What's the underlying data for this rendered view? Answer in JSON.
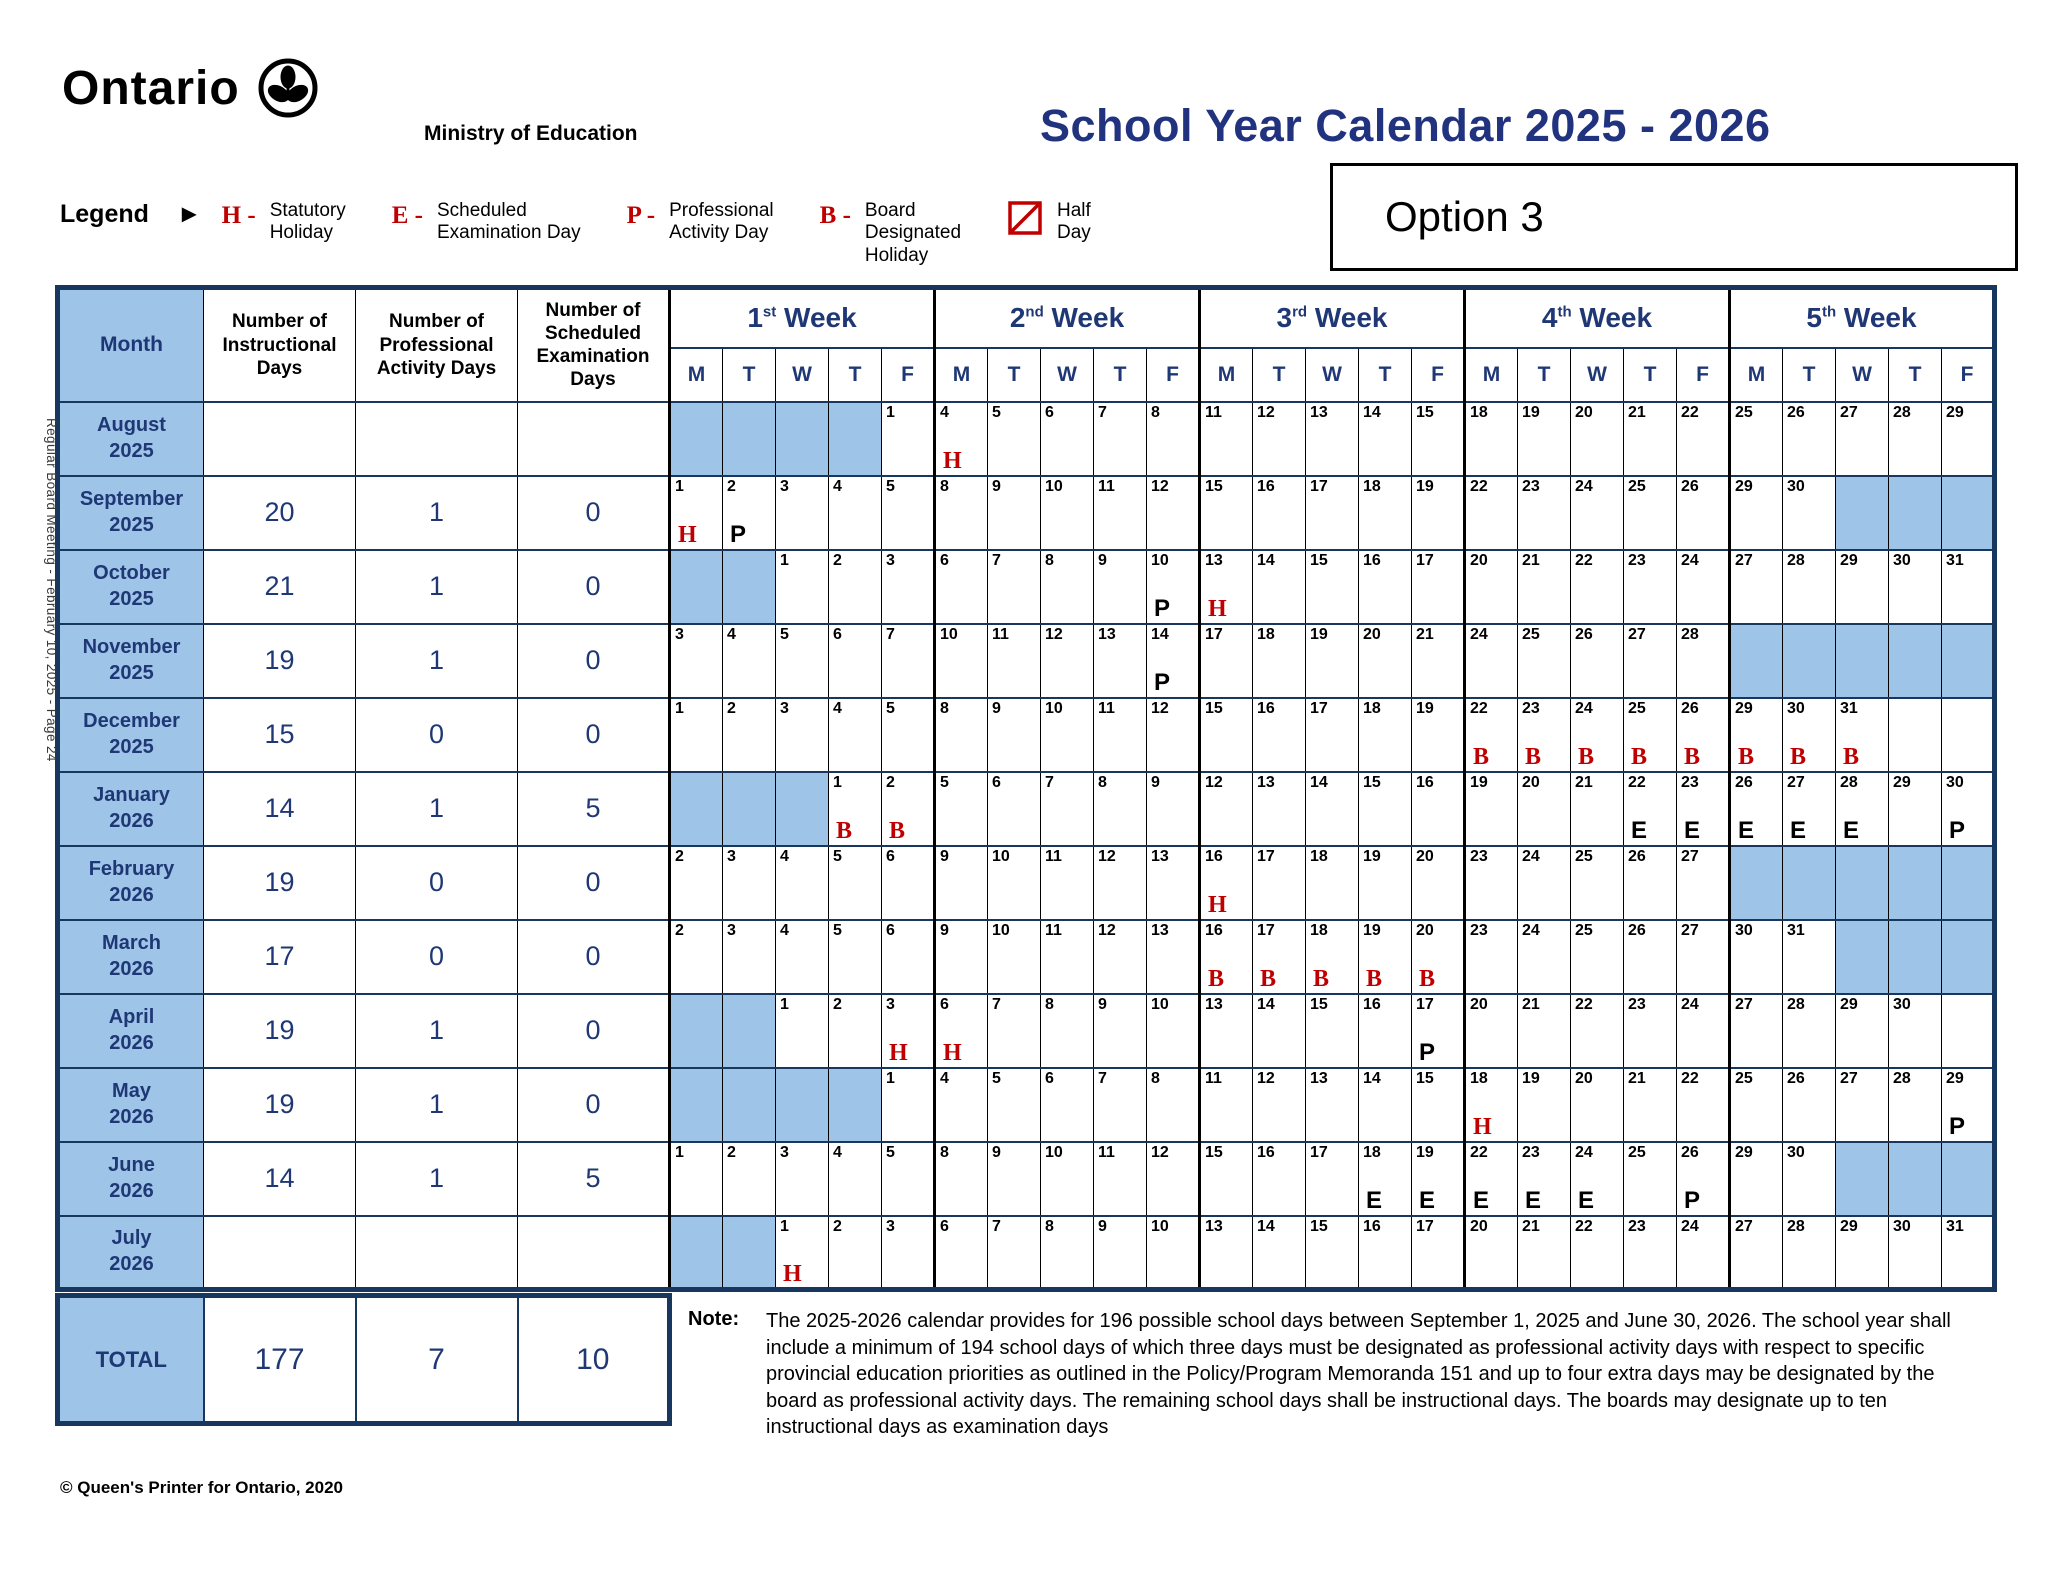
{
  "page": {
    "side_note": "Regular Board Meeting - February 10, 2025 - Page 24",
    "footer": "© Queen's Printer for Ontario, 2020"
  },
  "header": {
    "logo_text": "Ontario",
    "ministry": "Ministry of Education",
    "title": "School Year Calendar 2025 - 2026",
    "option": "Option 3"
  },
  "legend": {
    "label": "Legend",
    "items": [
      {
        "code": "H -",
        "desc": "Statutory\nHoliday"
      },
      {
        "code": "E -",
        "desc": "Scheduled\nExamination Day"
      },
      {
        "code": "P -",
        "desc": "Professional\nActivity Day"
      },
      {
        "code": "B -",
        "desc": "Board\nDesignated\nHoliday"
      },
      {
        "icon": "half-day-icon",
        "desc": "Half\nDay"
      }
    ]
  },
  "table": {
    "headers": {
      "month": "Month",
      "counts": [
        "Number of\nInstructional\nDays",
        "Number of\nProfessional\nActivity Days",
        "Number of\nScheduled\nExamination\nDays"
      ],
      "weeks": [
        {
          "ord": "1",
          "suffix": "st",
          "word": "Week"
        },
        {
          "ord": "2",
          "suffix": "nd",
          "word": "Week"
        },
        {
          "ord": "3",
          "suffix": "rd",
          "word": "Week"
        },
        {
          "ord": "4",
          "suffix": "th",
          "word": "Week"
        },
        {
          "ord": "5",
          "suffix": "th",
          "word": "Week"
        }
      ],
      "days": [
        "M",
        "T",
        "W",
        "T",
        "F"
      ]
    },
    "months": [
      {
        "name": "August",
        "year": "2025",
        "instructional": "",
        "pa": "",
        "exam": "",
        "weeks": [
          [
            "~",
            "~",
            "~",
            "~",
            "1"
          ],
          [
            "4|H",
            "5",
            "6",
            "7",
            "8"
          ],
          [
            "11",
            "12",
            "13",
            "14",
            "15"
          ],
          [
            "18",
            "19",
            "20",
            "21",
            "22"
          ],
          [
            "25",
            "26",
            "27",
            "28",
            "29"
          ]
        ]
      },
      {
        "name": "September",
        "year": "2025",
        "instructional": "20",
        "pa": "1",
        "exam": "0",
        "weeks": [
          [
            "1|H",
            "2|P",
            "3",
            "4",
            "5"
          ],
          [
            "8",
            "9",
            "10",
            "11",
            "12"
          ],
          [
            "15",
            "16",
            "17",
            "18",
            "19"
          ],
          [
            "22",
            "23",
            "24",
            "25",
            "26"
          ],
          [
            "29",
            "30",
            "~",
            "~",
            "~"
          ]
        ]
      },
      {
        "name": "October",
        "year": "2025",
        "instructional": "21",
        "pa": "1",
        "exam": "0",
        "weeks": [
          [
            "~",
            "~",
            "1",
            "2",
            "3"
          ],
          [
            "6",
            "7",
            "8",
            "9",
            "10|P"
          ],
          [
            "13|H",
            "14",
            "15",
            "16",
            "17"
          ],
          [
            "20",
            "21",
            "22",
            "23",
            "24"
          ],
          [
            "27",
            "28",
            "29",
            "30",
            "31"
          ]
        ]
      },
      {
        "name": "November",
        "year": "2025",
        "instructional": "19",
        "pa": "1",
        "exam": "0",
        "weeks": [
          [
            "3",
            "4",
            "5",
            "6",
            "7"
          ],
          [
            "10",
            "11",
            "12",
            "13",
            "14|P"
          ],
          [
            "17",
            "18",
            "19",
            "20",
            "21"
          ],
          [
            "24",
            "25",
            "26",
            "27",
            "28"
          ],
          [
            "~",
            "~",
            "~",
            "~",
            "~"
          ]
        ]
      },
      {
        "name": "December",
        "year": "2025",
        "instructional": "15",
        "pa": "0",
        "exam": "0",
        "weeks": [
          [
            "1",
            "2",
            "3",
            "4",
            "5"
          ],
          [
            "8",
            "9",
            "10",
            "11",
            "12"
          ],
          [
            "15",
            "16",
            "17",
            "18",
            "19"
          ],
          [
            "22|B",
            "23|B",
            "24|B",
            "25|B",
            "26|B"
          ],
          [
            "29|B",
            "30|B",
            "31|B",
            "",
            ""
          ]
        ]
      },
      {
        "name": "January",
        "year": "2026",
        "instructional": "14",
        "pa": "1",
        "exam": "5",
        "weeks": [
          [
            "~",
            "~",
            "~",
            "1|B",
            "2|B"
          ],
          [
            "5",
            "6",
            "7",
            "8",
            "9"
          ],
          [
            "12",
            "13",
            "14",
            "15",
            "16"
          ],
          [
            "19",
            "20",
            "21",
            "22|E",
            "23|E"
          ],
          [
            "26|E",
            "27|E",
            "28|E",
            "29",
            "30|P"
          ]
        ]
      },
      {
        "name": "February",
        "year": "2026",
        "instructional": "19",
        "pa": "0",
        "exam": "0",
        "weeks": [
          [
            "2",
            "3",
            "4",
            "5",
            "6"
          ],
          [
            "9",
            "10",
            "11",
            "12",
            "13"
          ],
          [
            "16|H",
            "17",
            "18",
            "19",
            "20"
          ],
          [
            "23",
            "24",
            "25",
            "26",
            "27"
          ],
          [
            "~",
            "~",
            "~",
            "~",
            "~"
          ]
        ]
      },
      {
        "name": "March",
        "year": "2026",
        "instructional": "17",
        "pa": "0",
        "exam": "0",
        "weeks": [
          [
            "2",
            "3",
            "4",
            "5",
            "6"
          ],
          [
            "9",
            "10",
            "11",
            "12",
            "13"
          ],
          [
            "16|B",
            "17|B",
            "18|B",
            "19|B",
            "20|B"
          ],
          [
            "23",
            "24",
            "25",
            "26",
            "27"
          ],
          [
            "30",
            "31",
            "~",
            "~",
            "~"
          ]
        ]
      },
      {
        "name": "April",
        "year": "2026",
        "instructional": "19",
        "pa": "1",
        "exam": "0",
        "weeks": [
          [
            "~",
            "~",
            "1",
            "2",
            "3|H"
          ],
          [
            "6|H",
            "7",
            "8",
            "9",
            "10"
          ],
          [
            "13",
            "14",
            "15",
            "16",
            "17|P"
          ],
          [
            "20",
            "21",
            "22",
            "23",
            "24"
          ],
          [
            "27",
            "28",
            "29",
            "30",
            ""
          ]
        ]
      },
      {
        "name": "May",
        "year": "2026",
        "instructional": "19",
        "pa": "1",
        "exam": "0",
        "weeks": [
          [
            "~",
            "~",
            "~",
            "~",
            "1"
          ],
          [
            "4",
            "5",
            "6",
            "7",
            "8"
          ],
          [
            "11",
            "12",
            "13",
            "14",
            "15"
          ],
          [
            "18|H",
            "19",
            "20",
            "21",
            "22"
          ],
          [
            "25",
            "26",
            "27",
            "28",
            "29|P"
          ]
        ]
      },
      {
        "name": "June",
        "year": "2026",
        "instructional": "14",
        "pa": "1",
        "exam": "5",
        "weeks": [
          [
            "1",
            "2",
            "3",
            "4",
            "5"
          ],
          [
            "8",
            "9",
            "10",
            "11",
            "12"
          ],
          [
            "15",
            "16",
            "17",
            "18|E",
            "19|E"
          ],
          [
            "22|E",
            "23|E",
            "24|E",
            "25",
            "26|P"
          ],
          [
            "29",
            "30",
            "~",
            "~",
            "~"
          ]
        ]
      },
      {
        "name": "July",
        "year": "2026",
        "instructional": "",
        "pa": "",
        "exam": "",
        "weeks": [
          [
            "~",
            "~",
            "1|H",
            "2",
            "3"
          ],
          [
            "6",
            "7",
            "8",
            "9",
            "10"
          ],
          [
            "13",
            "14",
            "15",
            "16",
            "17"
          ],
          [
            "20",
            "21",
            "22",
            "23",
            "24"
          ],
          [
            "27",
            "28",
            "29",
            "30",
            "31"
          ]
        ]
      }
    ],
    "total": {
      "label": "TOTAL",
      "instructional": "177",
      "pa": "7",
      "exam": "10"
    }
  },
  "note": {
    "label": "Note:",
    "text": "The 2025-2026 calendar provides for 196 possible school days between September 1, 2025 and June 30, 2026. The school year shall include a minimum of 194 school days of which three days must be designated as professional activity days with respect to specific provincial education priorities as outlined in the Policy/Program Memoranda 151 and up to four extra days may be designated by the board as professional activity days.  The remaining school days shall be instructional days.  The boards may designate up to ten instructional days as examination days"
  },
  "colors": {
    "navy_text": "#1F3875",
    "border_navy": "#17375E",
    "marker_red": "#C00000",
    "light_blue": "#9EC4E8",
    "title_blue": "#21337F"
  }
}
